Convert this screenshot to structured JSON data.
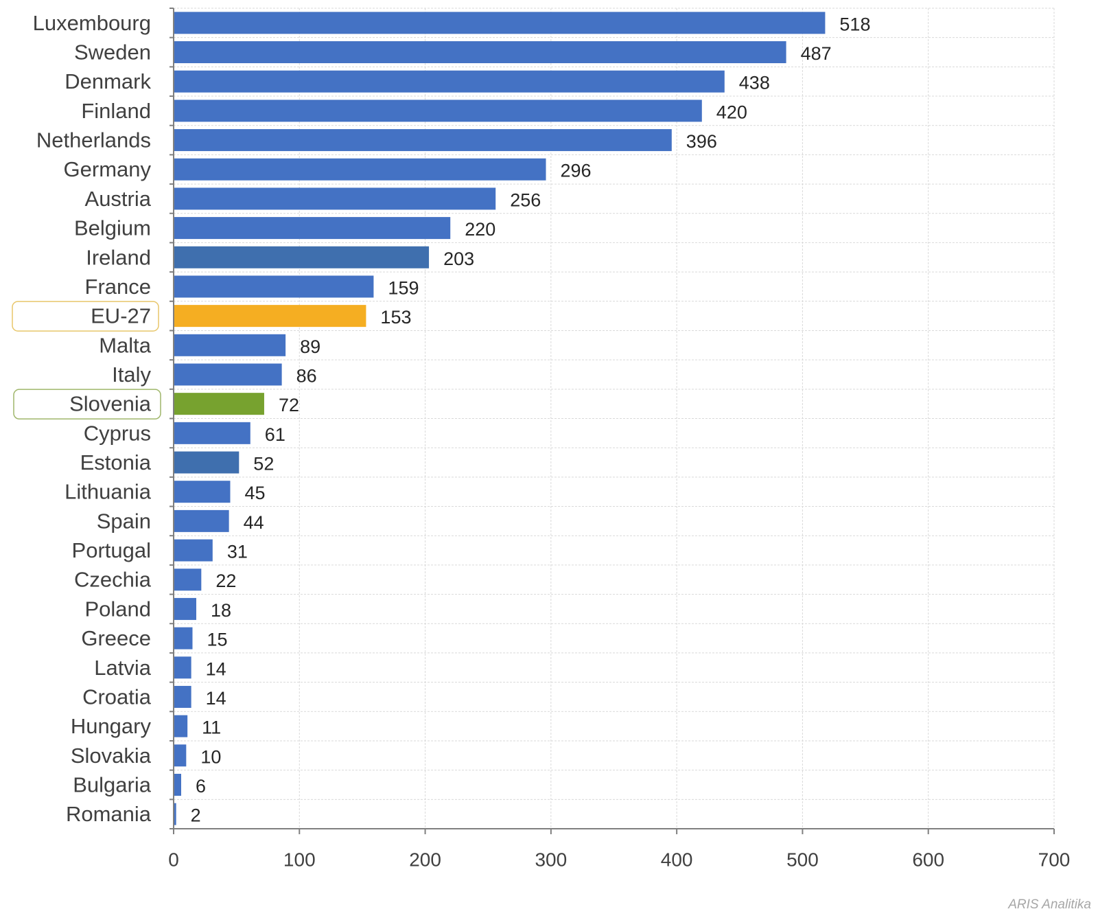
{
  "chart_data": {
    "type": "bar",
    "orientation": "horizontal",
    "categories": [
      "Luxembourg",
      "Sweden",
      "Denmark",
      "Finland",
      "Netherlands",
      "Germany",
      "Austria",
      "Belgium",
      "Ireland",
      "France",
      "EU-27",
      "Malta",
      "Italy",
      "Slovenia",
      "Cyprus",
      "Estonia",
      "Lithuania",
      "Spain",
      "Portugal",
      "Czechia",
      "Poland",
      "Greece",
      "Latvia",
      "Croatia",
      "Hungary",
      "Slovakia",
      "Bulgaria",
      "Romania"
    ],
    "values": [
      518,
      487,
      438,
      420,
      396,
      296,
      256,
      220,
      203,
      159,
      153,
      89,
      86,
      72,
      61,
      52,
      45,
      44,
      31,
      22,
      18,
      15,
      14,
      14,
      11,
      10,
      6,
      2
    ],
    "xlim": [
      0,
      700
    ],
    "xticks": [
      0,
      100,
      200,
      300,
      400,
      500,
      600,
      700
    ],
    "grid": true,
    "legend": "none",
    "highlighted": [
      "EU-27",
      "Slovenia"
    ],
    "colors": {
      "default": "#4472C4",
      "Ireland": "#3F6FAE",
      "Estonia": "#3F6FAE",
      "EU-27": "#F5AE22",
      "Slovenia": "#77A22F",
      "eu_box": "#E8C66A",
      "slovenia_box": "#9FB66A"
    }
  },
  "source": "ARIS Analitika"
}
